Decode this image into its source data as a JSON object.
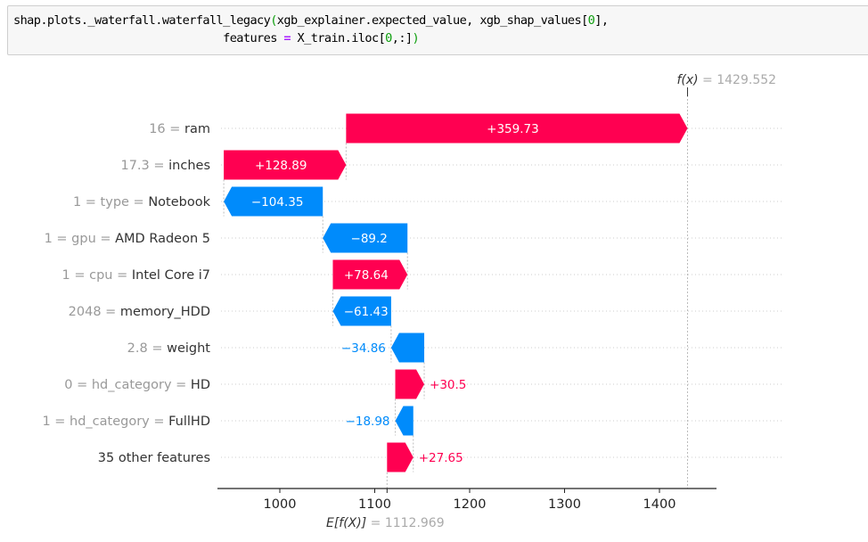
{
  "code_cell": {
    "line1_prefix": "shap.plots._waterfall.waterfall_legacy",
    "line1_open_paren": "(",
    "line1_args": "xgb_explainer.expected_value, xgb_shap_values[",
    "line1_index": "0",
    "line1_suffix": "],",
    "line2_indent": "                               ",
    "line2_kw": "features ",
    "line2_op": "=",
    "line2_expr": " X_train.iloc[",
    "line2_index": "0",
    "line2_tail": ",:]",
    "line2_close_paren": ")"
  },
  "colors": {
    "positive": "#ff0051",
    "negative": "#008bfb",
    "label_gray": "#999999",
    "label_dark": "#333333"
  },
  "chart_data": {
    "type": "waterfall",
    "title": "",
    "xlabel": "E[f(X)] = 1112.969",
    "ylabel": "",
    "base_value": 1112.969,
    "base_value_label": "1112.969",
    "output_value": 1429.552,
    "output_value_label": "1429.552",
    "xlim": [
      935,
      1462
    ],
    "xticks": [
      1000,
      1100,
      1200,
      1300,
      1400
    ],
    "xtick_labels": [
      "1000",
      "1100",
      "1200",
      "1300",
      "1400"
    ],
    "grid": false,
    "features": [
      {
        "value": "16",
        "name": "ram",
        "shap": 359.73,
        "label": "+359.73",
        "display": {
          "gray": "16 = ",
          "dark": "ram"
        }
      },
      {
        "value": "17.3",
        "name": "inches",
        "shap": 128.89,
        "label": "+128.89",
        "display": {
          "gray": "17.3 = ",
          "dark": "inches"
        }
      },
      {
        "value": "1",
        "name": "type = Notebook",
        "shap": -104.35,
        "label": "−104.35",
        "display": {
          "gray": "1 = type = ",
          "dark": "Notebook"
        }
      },
      {
        "value": "1",
        "name": "gpu = AMD Radeon 5",
        "shap": -89.2,
        "label": "−89.2",
        "display": {
          "gray": "1 = gpu = ",
          "dark": "AMD Radeon 5"
        }
      },
      {
        "value": "1",
        "name": "cpu = Intel Core i7",
        "shap": 78.64,
        "label": "+78.64",
        "display": {
          "gray": "1 = cpu = ",
          "dark": "Intel Core i7"
        }
      },
      {
        "value": "2048",
        "name": "memory_HDD",
        "shap": -61.43,
        "label": "−61.43",
        "display": {
          "gray": "2048 = ",
          "dark": "memory_HDD"
        }
      },
      {
        "value": "2.8",
        "name": "weight",
        "shap": -34.86,
        "label": "−34.86",
        "display": {
          "gray": "2.8 = ",
          "dark": "weight"
        }
      },
      {
        "value": "0",
        "name": "hd_category = HD",
        "shap": 30.5,
        "label": "+30.5",
        "display": {
          "gray": "0 = hd_category = ",
          "dark": "HD"
        }
      },
      {
        "value": "1",
        "name": "hd_category = FullHD",
        "shap": -18.98,
        "label": "−18.98",
        "display": {
          "gray": "1 = hd_category = ",
          "dark": "FullHD"
        }
      },
      {
        "value": "",
        "name": "35 other features",
        "shap": 27.65,
        "label": "+27.65",
        "display": {
          "gray": "",
          "dark": "35 other features"
        }
      }
    ]
  }
}
